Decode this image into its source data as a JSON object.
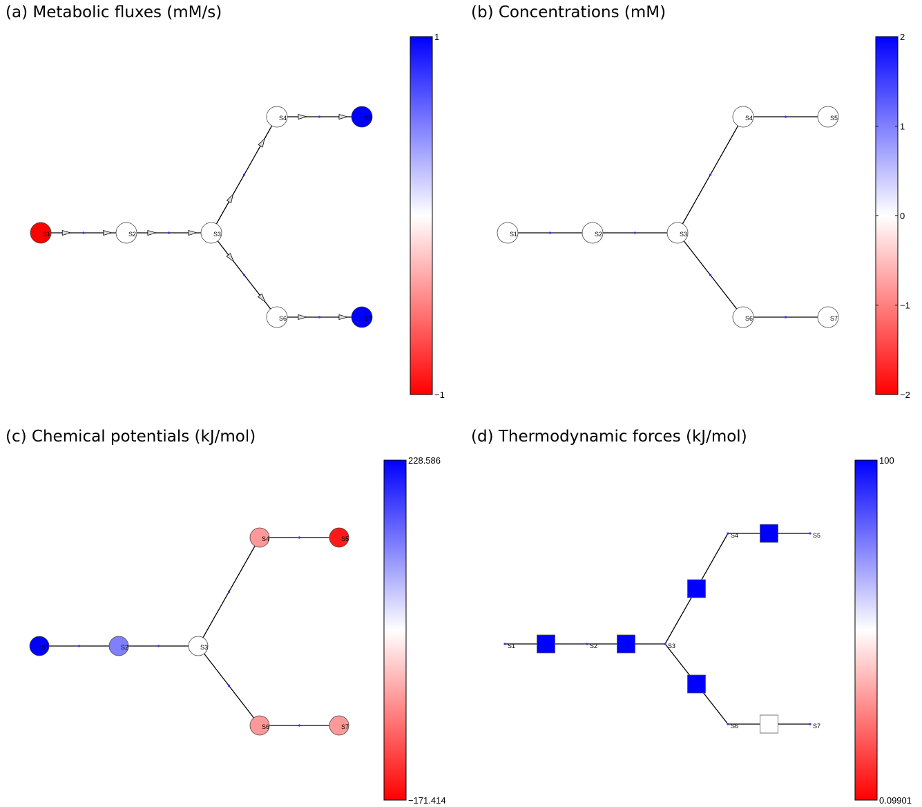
{
  "panels": [
    {
      "title": "(a) Metabolic fluxes (mM/s)",
      "colorbar": {
        "max": "1",
        "mid_top": "",
        "mid": "",
        "mid_bottom": "",
        "min": "−1"
      },
      "nodes": [
        {
          "label": "S1",
          "value": -1
        },
        {
          "label": "S2",
          "value": 0
        },
        {
          "label": "S3",
          "value": 0
        },
        {
          "label": "S4",
          "value": 0
        },
        {
          "label": "S5",
          "value": 1
        },
        {
          "label": "S6",
          "value": 0
        },
        {
          "label": "S7",
          "value": 1
        }
      ]
    },
    {
      "title": "(b) Concentrations (mM)",
      "colorbar": {
        "max": "2",
        "mid_top": "1",
        "mid": "0",
        "mid_bottom": "−1",
        "min": "−2"
      },
      "nodes": [
        {
          "label": "S1",
          "value": 0
        },
        {
          "label": "S2",
          "value": 0
        },
        {
          "label": "S3",
          "value": 0
        },
        {
          "label": "S4",
          "value": 0
        },
        {
          "label": "S5",
          "value": 0
        },
        {
          "label": "S6",
          "value": 0
        },
        {
          "label": "S7",
          "value": 0
        }
      ]
    },
    {
      "title": "(c) Chemical potentials (kJ/mol)",
      "colorbar": {
        "max": "228.586",
        "mid_top": "",
        "mid": "",
        "mid_bottom": "",
        "min": "−171.414"
      },
      "nodes": [
        {
          "label": "S1",
          "value": 1.0
        },
        {
          "label": "S2",
          "value": 0.5
        },
        {
          "label": "S3",
          "value": 0
        },
        {
          "label": "S4",
          "value": -0.4
        },
        {
          "label": "S5",
          "value": -0.9
        },
        {
          "label": "S6",
          "value": -0.4
        },
        {
          "label": "S7",
          "value": -0.4
        }
      ]
    },
    {
      "title": "(d) Thermodynamic forces (kJ/mol)",
      "colorbar": {
        "max": "100",
        "mid_top": "",
        "mid": "",
        "mid_bottom": "",
        "min": "0.09901"
      },
      "nodes": [
        {
          "label": "S1"
        },
        {
          "label": "S2"
        },
        {
          "label": "S3"
        },
        {
          "label": "S4"
        },
        {
          "label": "S5"
        },
        {
          "label": "S6"
        },
        {
          "label": "S7"
        }
      ],
      "reactions": [
        {
          "value": 1.0
        },
        {
          "value": 1.0
        },
        {
          "value": 1.0
        },
        {
          "value": 1.0
        },
        {
          "value": 1.0
        },
        {
          "value": 0
        }
      ]
    }
  ],
  "colors": {
    "positive": "#0000ff",
    "neutral": "#ffffff",
    "negative": "#ff0000"
  }
}
